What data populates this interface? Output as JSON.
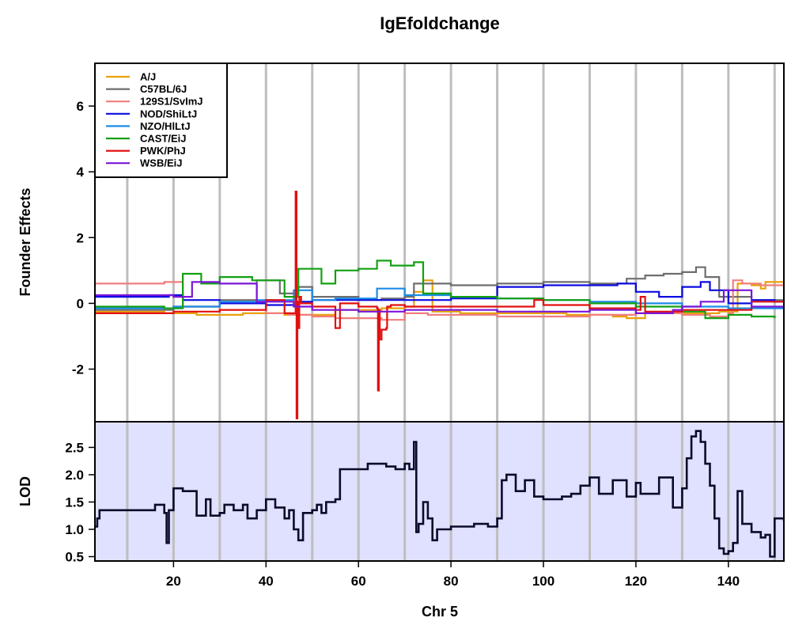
{
  "chart_data": [
    {
      "type": "line",
      "title": "IgEfoldchange",
      "xlabel": "",
      "ylabel": "Founder Effects",
      "xlim": [
        3,
        152
      ],
      "ylim": [
        -3.6,
        7.3
      ],
      "yticks": [
        -2,
        0,
        2,
        4,
        6
      ],
      "vlines": [
        10,
        20,
        30,
        40,
        50,
        60,
        70,
        80,
        90,
        100,
        110,
        120,
        130,
        140,
        150
      ],
      "legend_position": "top-left",
      "series": [
        {
          "name": "A/J",
          "color": "#E8A10C",
          "x": [
            3,
            8,
            18,
            25,
            35,
            44,
            55,
            65,
            70,
            72,
            74,
            76,
            82,
            95,
            105,
            115,
            118,
            122,
            128,
            138,
            142,
            145,
            147,
            148,
            152
          ],
          "y": [
            -0.25,
            -0.25,
            -0.3,
            -0.35,
            -0.3,
            -0.35,
            -0.2,
            -0.15,
            -0.1,
            0.35,
            0.7,
            -0.25,
            -0.3,
            -0.3,
            -0.35,
            -0.4,
            -0.45,
            -0.3,
            -0.3,
            -0.25,
            0.6,
            0.55,
            0.45,
            0.65,
            0.6
          ]
        },
        {
          "name": "C57BL/6J",
          "color": "#6E6E6E",
          "x": [
            3,
            10,
            20,
            30,
            38,
            43,
            47,
            50,
            55,
            60,
            65,
            70,
            72,
            75,
            80,
            90,
            100,
            110,
            118,
            122,
            126,
            130,
            133,
            135,
            138,
            145,
            152
          ],
          "y": [
            -0.2,
            -0.2,
            -0.1,
            0.1,
            0.7,
            0.3,
            0.5,
            0.2,
            0.2,
            0.1,
            0.15,
            0.2,
            0.6,
            0.6,
            0.55,
            0.6,
            0.65,
            0.6,
            0.75,
            0.85,
            0.9,
            0.95,
            1.1,
            0.8,
            0.2,
            0.1,
            0.05
          ]
        },
        {
          "name": "129S1/SvImJ",
          "color": "#F07E7E",
          "x": [
            3,
            10,
            18,
            22,
            30,
            40,
            45,
            50,
            55,
            60,
            65,
            70,
            75,
            80,
            90,
            100,
            110,
            120,
            130,
            136,
            140,
            141,
            143,
            147,
            152
          ],
          "y": [
            0.6,
            0.6,
            0.65,
            -0.1,
            -0.2,
            -0.3,
            -0.35,
            -0.4,
            -0.45,
            -0.45,
            -0.5,
            -0.3,
            -0.35,
            -0.35,
            -0.4,
            -0.4,
            -0.35,
            -0.3,
            -0.35,
            -0.4,
            -0.3,
            0.7,
            0.6,
            0.55,
            0.6
          ]
        },
        {
          "name": "NOD/ShiLtJ",
          "color": "#0C0CE0",
          "x": [
            3,
            10,
            19,
            22,
            30,
            40,
            47,
            50,
            60,
            70,
            80,
            88,
            90,
            100,
            110,
            116,
            120,
            125,
            130,
            134,
            136,
            140,
            145,
            150,
            152
          ],
          "y": [
            0.2,
            0.2,
            0.25,
            0.1,
            0.0,
            -0.05,
            0.05,
            0.1,
            0.1,
            0.1,
            0.15,
            0.15,
            0.5,
            0.55,
            0.55,
            0.6,
            0.35,
            0.2,
            0.5,
            0.65,
            0.4,
            0.0,
            0.1,
            0.05,
            0.05
          ]
        },
        {
          "name": "NZO/HlLtJ",
          "color": "#1C8CE6",
          "x": [
            3,
            10,
            20,
            30,
            38,
            46,
            50,
            55,
            60,
            64,
            70,
            80,
            90,
            100,
            110,
            120,
            130,
            140,
            152
          ],
          "y": [
            -0.15,
            -0.15,
            -0.1,
            0.05,
            0.1,
            0.4,
            0.1,
            0.15,
            0.15,
            0.45,
            0.25,
            0.2,
            0.15,
            0.1,
            0.05,
            0.0,
            -0.1,
            -0.15,
            -0.1
          ]
        },
        {
          "name": "CAST/EiJ",
          "color": "#13A013",
          "x": [
            3,
            10,
            18,
            22,
            26,
            30,
            37,
            44,
            47,
            52,
            55,
            60,
            64,
            67,
            72,
            74,
            80,
            90,
            100,
            110,
            120,
            130,
            135,
            140,
            145,
            150
          ],
          "y": [
            -0.1,
            -0.1,
            -0.15,
            0.9,
            0.6,
            0.8,
            0.7,
            0.2,
            1.05,
            0.6,
            1.0,
            1.05,
            1.3,
            1.15,
            1.25,
            0.3,
            0.2,
            0.15,
            0.1,
            0.0,
            -0.1,
            -0.25,
            -0.45,
            -0.35,
            -0.4,
            -0.45
          ]
        },
        {
          "name": "PWK/PhJ",
          "color": "#E01010",
          "x": [
            3,
            10,
            20,
            30,
            37,
            40,
            44,
            46.4,
            46.6,
            46.8,
            47.0,
            47.2,
            47.6,
            50,
            55,
            56,
            60,
            64.0,
            64.2,
            64.4,
            64.6,
            65,
            66,
            66.2,
            67,
            70,
            80,
            90,
            98,
            100,
            110,
            120,
            121,
            122,
            130,
            140,
            145,
            152
          ],
          "y": [
            -0.3,
            -0.3,
            -0.25,
            -0.2,
            -0.2,
            0.1,
            -0.3,
            3.4,
            -3.5,
            0.05,
            -0.75,
            0.2,
            0.0,
            -0.1,
            -0.75,
            0.0,
            -0.1,
            -0.15,
            -2.65,
            -0.2,
            -1.1,
            -0.8,
            -0.75,
            -0.1,
            -0.05,
            -0.1,
            -0.1,
            -0.1,
            0.1,
            -0.05,
            -0.15,
            -0.2,
            0.2,
            -0.25,
            -0.2,
            -0.2,
            0.05,
            0.1
          ]
        },
        {
          "name": "WSB/EiJ",
          "color": "#7B16D6",
          "x": [
            3,
            10,
            20,
            24,
            30,
            38,
            46,
            50,
            60,
            70,
            80,
            90,
            100,
            110,
            120,
            128,
            130,
            134,
            139,
            145,
            152
          ],
          "y": [
            0.25,
            0.25,
            0.2,
            0.65,
            0.6,
            0.05,
            -0.1,
            -0.2,
            -0.25,
            -0.2,
            -0.2,
            -0.25,
            -0.25,
            -0.2,
            -0.3,
            -0.2,
            -0.1,
            0.05,
            0.4,
            -0.1,
            -0.1
          ]
        }
      ]
    },
    {
      "type": "line",
      "title": "",
      "xlabel": "Chr 5",
      "ylabel": "LOD",
      "xlim": [
        3,
        152
      ],
      "ylim": [
        0.42,
        2.97
      ],
      "xticks": [
        20,
        40,
        60,
        80,
        100,
        120,
        140
      ],
      "yticks": [
        0.5,
        1.0,
        1.5,
        2.0,
        2.5
      ],
      "ytick_labels": [
        "0.5",
        "1.0",
        "1.5",
        "2.0",
        "2.5"
      ],
      "background": "#E0E0FF",
      "vlines": [
        10,
        20,
        30,
        40,
        50,
        60,
        70,
        80,
        90,
        100,
        110,
        120,
        130,
        140,
        150
      ],
      "series": [
        {
          "name": "",
          "color": "#0A0A2A",
          "x": [
            3,
            3.5,
            4,
            15,
            16,
            18,
            18.5,
            19,
            20,
            22,
            25,
            27,
            28,
            30,
            31,
            33,
            35,
            36,
            38,
            40,
            42,
            44,
            45,
            46,
            47,
            48,
            50,
            51,
            52,
            53,
            55,
            56,
            62,
            65,
            66,
            68,
            70,
            71,
            72,
            72.5,
            73,
            74,
            75,
            76,
            77,
            80,
            85,
            88,
            90,
            91,
            92,
            94,
            96,
            98,
            100,
            104,
            106,
            108,
            110,
            112,
            115,
            118,
            120,
            121,
            125,
            128,
            130,
            131,
            132,
            133,
            134,
            135,
            136,
            137,
            138,
            139,
            140,
            141,
            142,
            143,
            145,
            147,
            148,
            149,
            150,
            152
          ],
          "y": [
            1.05,
            1.2,
            1.35,
            1.35,
            1.45,
            1.3,
            0.75,
            1.35,
            1.75,
            1.7,
            1.25,
            1.55,
            1.25,
            1.3,
            1.45,
            1.35,
            1.45,
            1.2,
            1.35,
            1.55,
            1.4,
            1.2,
            1.35,
            1.0,
            0.8,
            1.3,
            1.35,
            1.45,
            1.3,
            1.5,
            1.55,
            2.1,
            2.2,
            2.2,
            2.15,
            2.1,
            2.2,
            2.1,
            2.6,
            0.95,
            1.1,
            1.5,
            1.2,
            0.8,
            1.0,
            1.05,
            1.1,
            1.05,
            1.2,
            1.9,
            2.0,
            1.7,
            1.9,
            1.6,
            1.55,
            1.6,
            1.65,
            1.8,
            1.95,
            1.65,
            1.9,
            1.6,
            1.85,
            1.65,
            1.95,
            1.4,
            1.75,
            2.3,
            2.7,
            2.8,
            2.6,
            2.2,
            1.8,
            1.2,
            0.65,
            0.55,
            0.6,
            0.75,
            1.7,
            1.1,
            0.95,
            0.85,
            0.9,
            0.5,
            1.2,
            1.15
          ]
        }
      ]
    }
  ]
}
